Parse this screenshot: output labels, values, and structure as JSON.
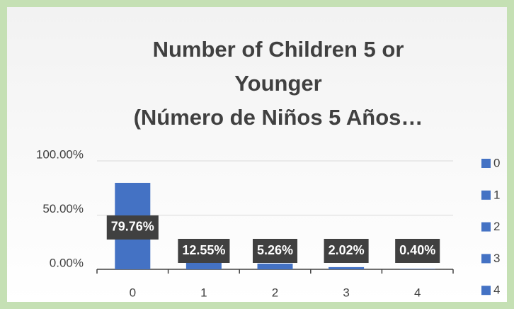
{
  "chart_data": {
    "type": "bar",
    "title": [
      "Number of Children 5 or",
      "Younger",
      "(Número de Niños 5 Años…"
    ],
    "categories": [
      "0",
      "1",
      "2",
      "3",
      "4"
    ],
    "values": [
      79.76,
      12.55,
      5.26,
      2.02,
      0.4
    ],
    "value_labels": [
      "79.76%",
      "12.55%",
      "5.26%",
      "2.02%",
      "0.40%"
    ],
    "color": "#4472c4",
    "ylim": [
      0,
      100
    ],
    "yticks": [
      {
        "value": 0,
        "label": "0.00%"
      },
      {
        "value": 50,
        "label": "50.00%"
      },
      {
        "value": 100,
        "label": "100.00%"
      }
    ],
    "grid": true,
    "legend": "right"
  }
}
